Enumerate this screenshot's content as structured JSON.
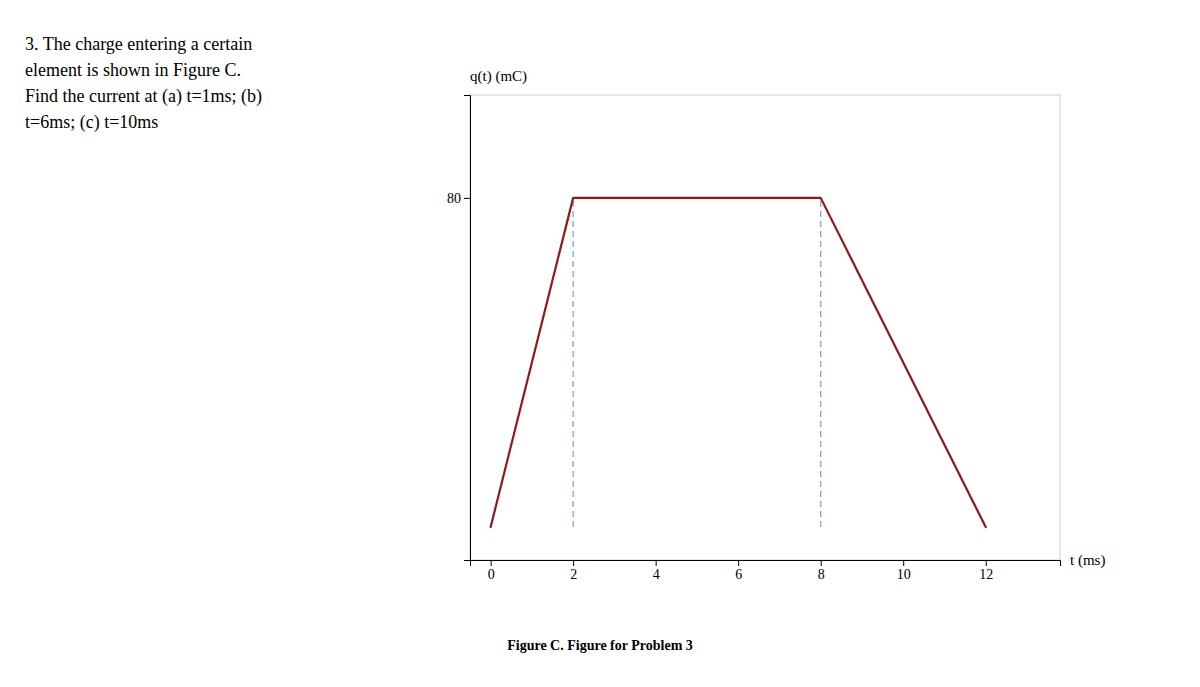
{
  "chart_data": {
    "type": "line",
    "title": "3. The charge entering a certain\nelement is shown in Figure C.\nFind the current at (a) t=1ms; (b)\nt=6ms; (c) t=10ms",
    "caption": "Figure C. Figure for Problem 3",
    "xlabel": "t (ms)",
    "ylabel": "q(t) (mC)",
    "x": [
      0,
      2,
      8,
      12
    ],
    "values": [
      0,
      80,
      80,
      0
    ],
    "color": "#8B1A1A",
    "drop_lines": {
      "x": [
        2,
        8
      ],
      "top": 80,
      "color": "#87AECB",
      "line_style": "dashed"
    },
    "xlim": [
      -0.5,
      13.8
    ],
    "ylim": [
      -8,
      105
    ],
    "xticks": [
      0,
      2,
      4,
      6,
      8,
      10,
      12
    ],
    "yticks": [
      80
    ],
    "grid": false
  }
}
